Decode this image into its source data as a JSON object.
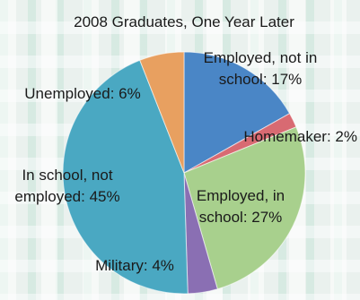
{
  "chart_data": {
    "type": "pie",
    "title": "2008 Graduates, One Year Later",
    "slices": [
      {
        "label": "Employed, not in school",
        "value": 17,
        "color": "#4a86c6"
      },
      {
        "label": "Homemaker",
        "value": 2,
        "color": "#d86a72"
      },
      {
        "label": "Employed, in school",
        "value": 27,
        "color": "#a8d08d"
      },
      {
        "label": "Military",
        "value": 4,
        "color": "#8a6fb3"
      },
      {
        "label": "In school, not employed",
        "value": 45,
        "color": "#4aa8c2"
      },
      {
        "label": "Unemployed",
        "value": 6,
        "color": "#e8a060"
      }
    ],
    "labels": [
      {
        "lines": [
          "Employed, not in",
          "school: 17%"
        ]
      },
      {
        "lines": [
          "Homemaker: 2%"
        ]
      },
      {
        "lines": [
          "Employed, in",
          "school: 27%"
        ]
      },
      {
        "lines": [
          "Military: 4%"
        ]
      },
      {
        "lines": [
          "In school, not",
          "employed: 45%"
        ]
      },
      {
        "lines": [
          "Unemployed: 6%"
        ]
      }
    ]
  }
}
